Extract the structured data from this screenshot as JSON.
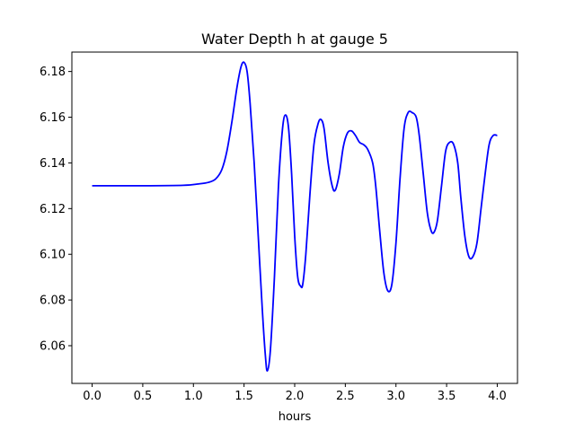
{
  "chart_data": {
    "type": "line",
    "title": "Water Depth h at gauge 5",
    "xlabel": "hours",
    "ylabel": "",
    "xlim": [
      -0.2,
      4.2
    ],
    "ylim": [
      6.0435,
      6.1885
    ],
    "x_ticks": [
      0.0,
      0.5,
      1.0,
      1.5,
      2.0,
      2.5,
      3.0,
      3.5,
      4.0
    ],
    "x_tick_labels": [
      "0.0",
      "0.5",
      "1.0",
      "1.5",
      "2.0",
      "2.5",
      "3.0",
      "3.5",
      "4.0"
    ],
    "y_ticks": [
      6.06,
      6.08,
      6.1,
      6.12,
      6.14,
      6.16,
      6.18
    ],
    "y_tick_labels": [
      "6.06",
      "6.08",
      "6.10",
      "6.12",
      "6.14",
      "6.16",
      "6.18"
    ],
    "grid": false,
    "series": [
      {
        "color": "#0000ff",
        "x": [
          0.0,
          0.5,
          0.9,
          1.05,
          1.15,
          1.22,
          1.28,
          1.33,
          1.38,
          1.43,
          1.47,
          1.5,
          1.53,
          1.56,
          1.6,
          1.64,
          1.68,
          1.71,
          1.73,
          1.76,
          1.8,
          1.84,
          1.88,
          1.91,
          1.94,
          1.97,
          2.0,
          2.03,
          2.06,
          2.08,
          2.11,
          2.15,
          2.19,
          2.23,
          2.26,
          2.29,
          2.33,
          2.37,
          2.4,
          2.44,
          2.48,
          2.52,
          2.56,
          2.6,
          2.64,
          2.68,
          2.72,
          2.77,
          2.8,
          2.84,
          2.88,
          2.92,
          2.96,
          3.0,
          3.04,
          3.08,
          3.12,
          3.16,
          3.2,
          3.23,
          3.27,
          3.31,
          3.35,
          3.38,
          3.41,
          3.45,
          3.49,
          3.53,
          3.57,
          3.61,
          3.64,
          3.68,
          3.72,
          3.76,
          3.8,
          3.84,
          3.88,
          3.92,
          3.96,
          4.0
        ],
        "y": [
          6.13,
          6.13,
          6.1302,
          6.1308,
          6.1315,
          6.133,
          6.137,
          6.145,
          6.158,
          6.173,
          6.182,
          6.184,
          6.18,
          6.166,
          6.14,
          6.108,
          6.076,
          6.056,
          6.049,
          6.058,
          6.09,
          6.13,
          6.155,
          6.161,
          6.155,
          6.135,
          6.108,
          6.09,
          6.086,
          6.087,
          6.1,
          6.126,
          6.148,
          6.157,
          6.159,
          6.155,
          6.14,
          6.13,
          6.128,
          6.135,
          6.147,
          6.153,
          6.154,
          6.152,
          6.149,
          6.148,
          6.146,
          6.14,
          6.13,
          6.11,
          6.092,
          6.084,
          6.087,
          6.105,
          6.133,
          6.155,
          6.162,
          6.162,
          6.16,
          6.152,
          6.135,
          6.118,
          6.11,
          6.11,
          6.115,
          6.13,
          6.145,
          6.149,
          6.148,
          6.14,
          6.125,
          6.108,
          6.099,
          6.099,
          6.105,
          6.12,
          6.135,
          6.148,
          6.152,
          6.152
        ]
      }
    ]
  }
}
